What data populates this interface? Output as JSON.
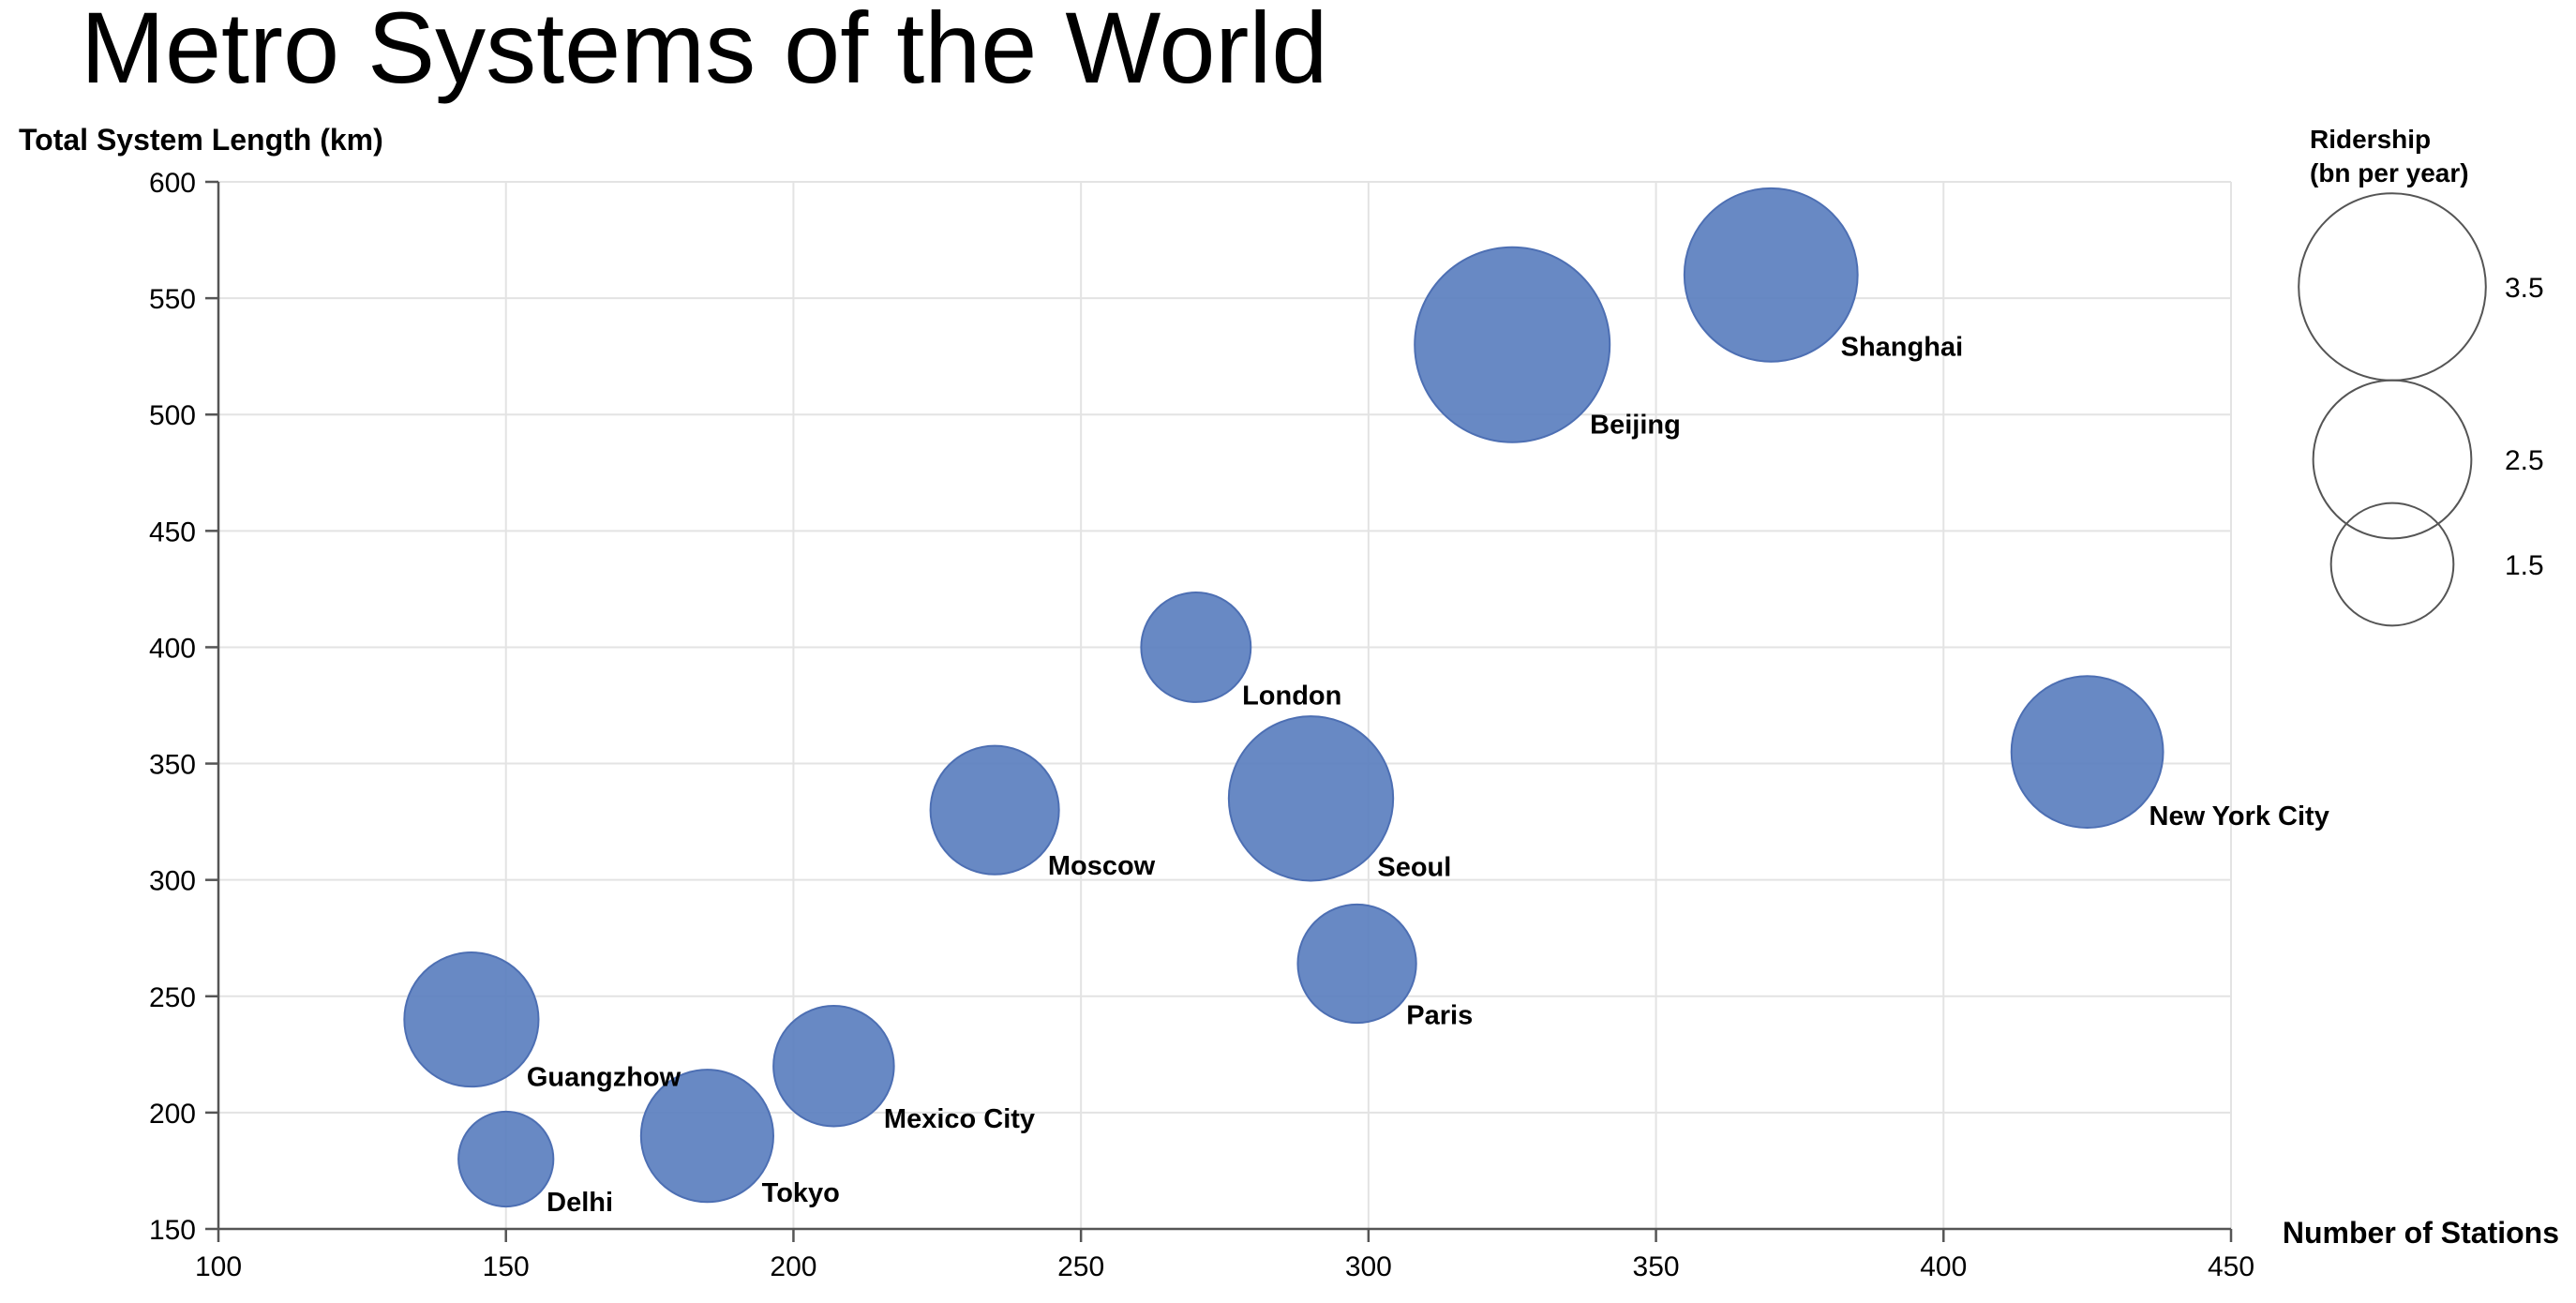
{
  "chart_data": {
    "type": "scatter",
    "subtype": "bubble",
    "title": "Metro Systems of the World",
    "xlabel": "Number of Stations",
    "ylabel": "Total System Length (km)",
    "xlim": [
      100,
      450
    ],
    "ylim": [
      150,
      600
    ],
    "xticks": [
      100,
      150,
      200,
      250,
      300,
      350,
      400,
      450
    ],
    "yticks": [
      150,
      200,
      250,
      300,
      350,
      400,
      450,
      500,
      550,
      600
    ],
    "grid": true,
    "size_field": "Ridership (bn per year)",
    "legend": {
      "title_line1": "Ridership",
      "title_line2": "(bn per year)",
      "placement": "top-right",
      "sizes": [
        3.5,
        2.5,
        1.5
      ],
      "labels": [
        "3.5",
        "2.5",
        "1.5"
      ]
    },
    "colors": {
      "bubble_fill": "#5b7fbf",
      "bubble_stroke": "#4d6fb3"
    },
    "points": [
      {
        "name": "Beijing",
        "x": 325,
        "y": 530,
        "size": 3.8
      },
      {
        "name": "Shanghai",
        "x": 370,
        "y": 560,
        "size": 3.0
      },
      {
        "name": "Seoul",
        "x": 290,
        "y": 335,
        "size": 2.7
      },
      {
        "name": "New York City",
        "x": 425,
        "y": 355,
        "size": 2.3
      },
      {
        "name": "Guangzhow",
        "x": 144,
        "y": 240,
        "size": 1.8
      },
      {
        "name": "Tokyo",
        "x": 185,
        "y": 190,
        "size": 1.75
      },
      {
        "name": "Moscow",
        "x": 235,
        "y": 330,
        "size": 1.65
      },
      {
        "name": "Mexico City",
        "x": 207,
        "y": 220,
        "size": 1.45
      },
      {
        "name": "Paris",
        "x": 298,
        "y": 264,
        "size": 1.4
      },
      {
        "name": "London",
        "x": 270,
        "y": 400,
        "size": 1.2
      },
      {
        "name": "Delhi",
        "x": 150,
        "y": 180,
        "size": 0.9
      }
    ]
  }
}
